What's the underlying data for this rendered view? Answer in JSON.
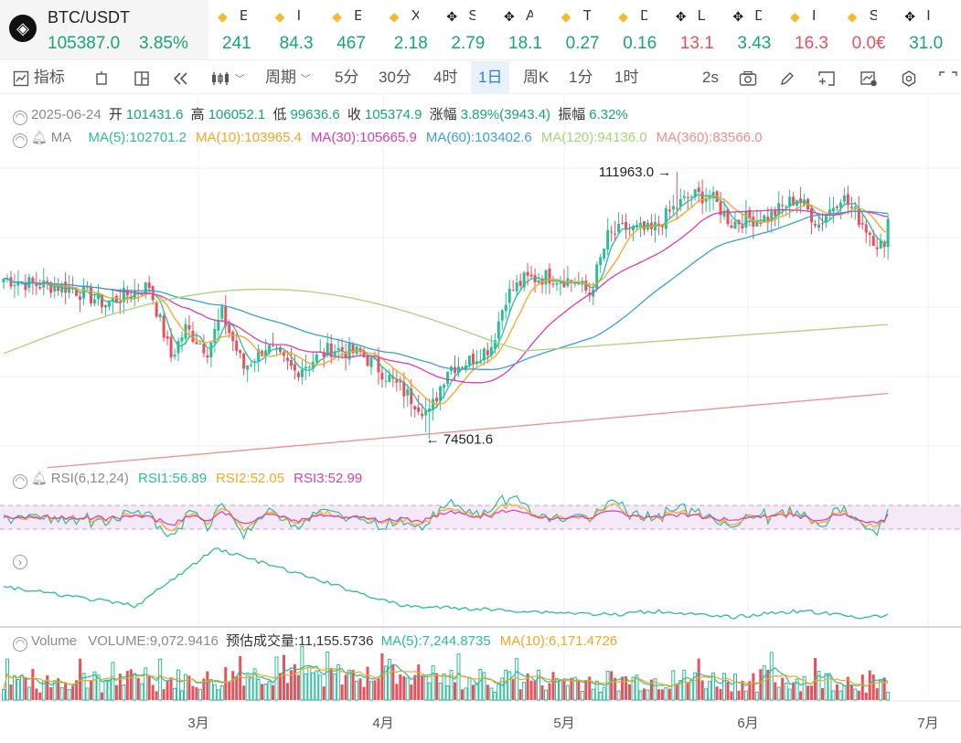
{
  "ticker": {
    "main": {
      "symbol": "BTC/USDT",
      "price": "105387.0",
      "change": "3.85%"
    },
    "items": [
      {
        "icon": "bnb-icon",
        "name": "E",
        "value": "241",
        "dir": "up"
      },
      {
        "icon": "bnb-icon",
        "name": "I",
        "value": "84.3",
        "dir": "up"
      },
      {
        "icon": "bnb-icon",
        "name": "E",
        "value": "467",
        "dir": "up"
      },
      {
        "icon": "bnb-icon",
        "name": "X",
        "value": "2.18",
        "dir": "up"
      },
      {
        "icon": "chip-icon",
        "name": "S",
        "value": "2.79",
        "dir": "up"
      },
      {
        "icon": "chip-icon",
        "name": "A",
        "value": "18.1",
        "dir": "up"
      },
      {
        "icon": "bnb-icon",
        "name": "T",
        "value": "0.27",
        "dir": "up"
      },
      {
        "icon": "bnb-icon",
        "name": "D",
        "value": "0.16",
        "dir": "up"
      },
      {
        "icon": "chip-icon",
        "name": "L",
        "value": "13.1",
        "dir": "down"
      },
      {
        "icon": "chip-icon",
        "name": "D",
        "value": "3.43",
        "dir": "up"
      },
      {
        "icon": "bnb-icon",
        "name": "I",
        "value": "16.3",
        "dir": "down"
      },
      {
        "icon": "bnb-icon",
        "name": "S",
        "value": "0.0€",
        "dir": "down"
      },
      {
        "icon": "chip-icon",
        "name": "I",
        "value": "31.0",
        "dir": "up"
      }
    ]
  },
  "toolbar": {
    "indicators": "指标",
    "period": "周期",
    "intervals": [
      "5分",
      "30分",
      "4时",
      "1日",
      "周K",
      "1分",
      "1时"
    ],
    "active_interval": "1日",
    "refresh": "2s"
  },
  "candle_info": {
    "date": "2025-06-24",
    "open_label": "开",
    "open": "101431.6",
    "high_label": "高",
    "high": "106052.1",
    "low_label": "低",
    "low": "99636.6",
    "close_label": "收",
    "close": "105374.9",
    "change_label": "涨幅",
    "change": "3.89%(3943.4)",
    "amp_label": "振幅",
    "amp": "6.32%"
  },
  "ma_info": {
    "label": "MA",
    "items": [
      {
        "text": "MA(5):102701.2",
        "color": "#2bbd9a"
      },
      {
        "text": "MA(10):103965.4",
        "color": "#f5a623"
      },
      {
        "text": "MA(30):105665.9",
        "color": "#d63fb6"
      },
      {
        "text": "MA(60):103402.6",
        "color": "#3aa0d8"
      },
      {
        "text": "MA(120):94136.0",
        "color": "#a9d37a"
      },
      {
        "text": "MA(360):83566.0",
        "color": "#f08d8d"
      }
    ]
  },
  "rsi_info": {
    "label": "RSI(6,12,24)",
    "items": [
      {
        "text": "RSI1:56.89",
        "color": "#2bbd9a"
      },
      {
        "text": "RSI2:52.05",
        "color": "#f5a623"
      },
      {
        "text": "RSI3:52.99",
        "color": "#d63fb6"
      }
    ]
  },
  "vol_info": {
    "label": "Volume",
    "volume": "VOLUME:9,072.9416",
    "estimate": "预估成交量:11,155.5736",
    "items": [
      {
        "text": "MA(5):7,244.8735",
        "color": "#2bbd9a"
      },
      {
        "text": "MA(10):6,171.4726",
        "color": "#f5a623"
      }
    ]
  },
  "chart_data": {
    "type": "candlestick",
    "price_max_label": "111963.0",
    "price_min_label": "74501.6",
    "ylim": [
      72000,
      114000
    ],
    "x_ticks": [
      "3月",
      "4月",
      "5月",
      "6月",
      "7月"
    ],
    "colors": {
      "up": "#2bbd9a",
      "down": "#e8505b"
    },
    "close_anchors": [
      {
        "i": 0,
        "c": 97000
      },
      {
        "i": 8,
        "c": 96200
      },
      {
        "i": 18,
        "c": 95800
      },
      {
        "i": 28,
        "c": 93500
      },
      {
        "i": 40,
        "c": 96000
      },
      {
        "i": 46,
        "c": 86000
      },
      {
        "i": 50,
        "c": 90000
      },
      {
        "i": 56,
        "c": 87000
      },
      {
        "i": 60,
        "c": 92000
      },
      {
        "i": 66,
        "c": 84500
      },
      {
        "i": 72,
        "c": 87500
      },
      {
        "i": 80,
        "c": 84000
      },
      {
        "i": 90,
        "c": 87200
      },
      {
        "i": 98,
        "c": 86500
      },
      {
        "i": 104,
        "c": 84000
      },
      {
        "i": 107,
        "c": 82500
      },
      {
        "i": 112,
        "c": 80200
      },
      {
        "i": 117,
        "c": 78000
      },
      {
        "i": 122,
        "c": 84500
      },
      {
        "i": 128,
        "c": 85500
      },
      {
        "i": 134,
        "c": 87600
      },
      {
        "i": 138,
        "c": 94500
      },
      {
        "i": 143,
        "c": 96800
      },
      {
        "i": 150,
        "c": 97300
      },
      {
        "i": 157,
        "c": 96600
      },
      {
        "i": 161,
        "c": 94800
      },
      {
        "i": 166,
        "c": 102800
      },
      {
        "i": 171,
        "c": 104000
      },
      {
        "i": 178,
        "c": 103600
      },
      {
        "i": 184,
        "c": 106800
      },
      {
        "i": 189,
        "c": 108600
      },
      {
        "i": 194,
        "c": 108600
      },
      {
        "i": 200,
        "c": 104800
      },
      {
        "i": 204,
        "c": 105300
      },
      {
        "i": 210,
        "c": 105500
      },
      {
        "i": 218,
        "c": 108400
      },
      {
        "i": 224,
        "c": 104600
      },
      {
        "i": 230,
        "c": 108700
      },
      {
        "i": 236,
        "c": 104800
      },
      {
        "i": 240,
        "c": 102000
      },
      {
        "i": 242,
        "c": 101431.6
      },
      {
        "i": 243,
        "c": 105374.9
      }
    ]
  }
}
